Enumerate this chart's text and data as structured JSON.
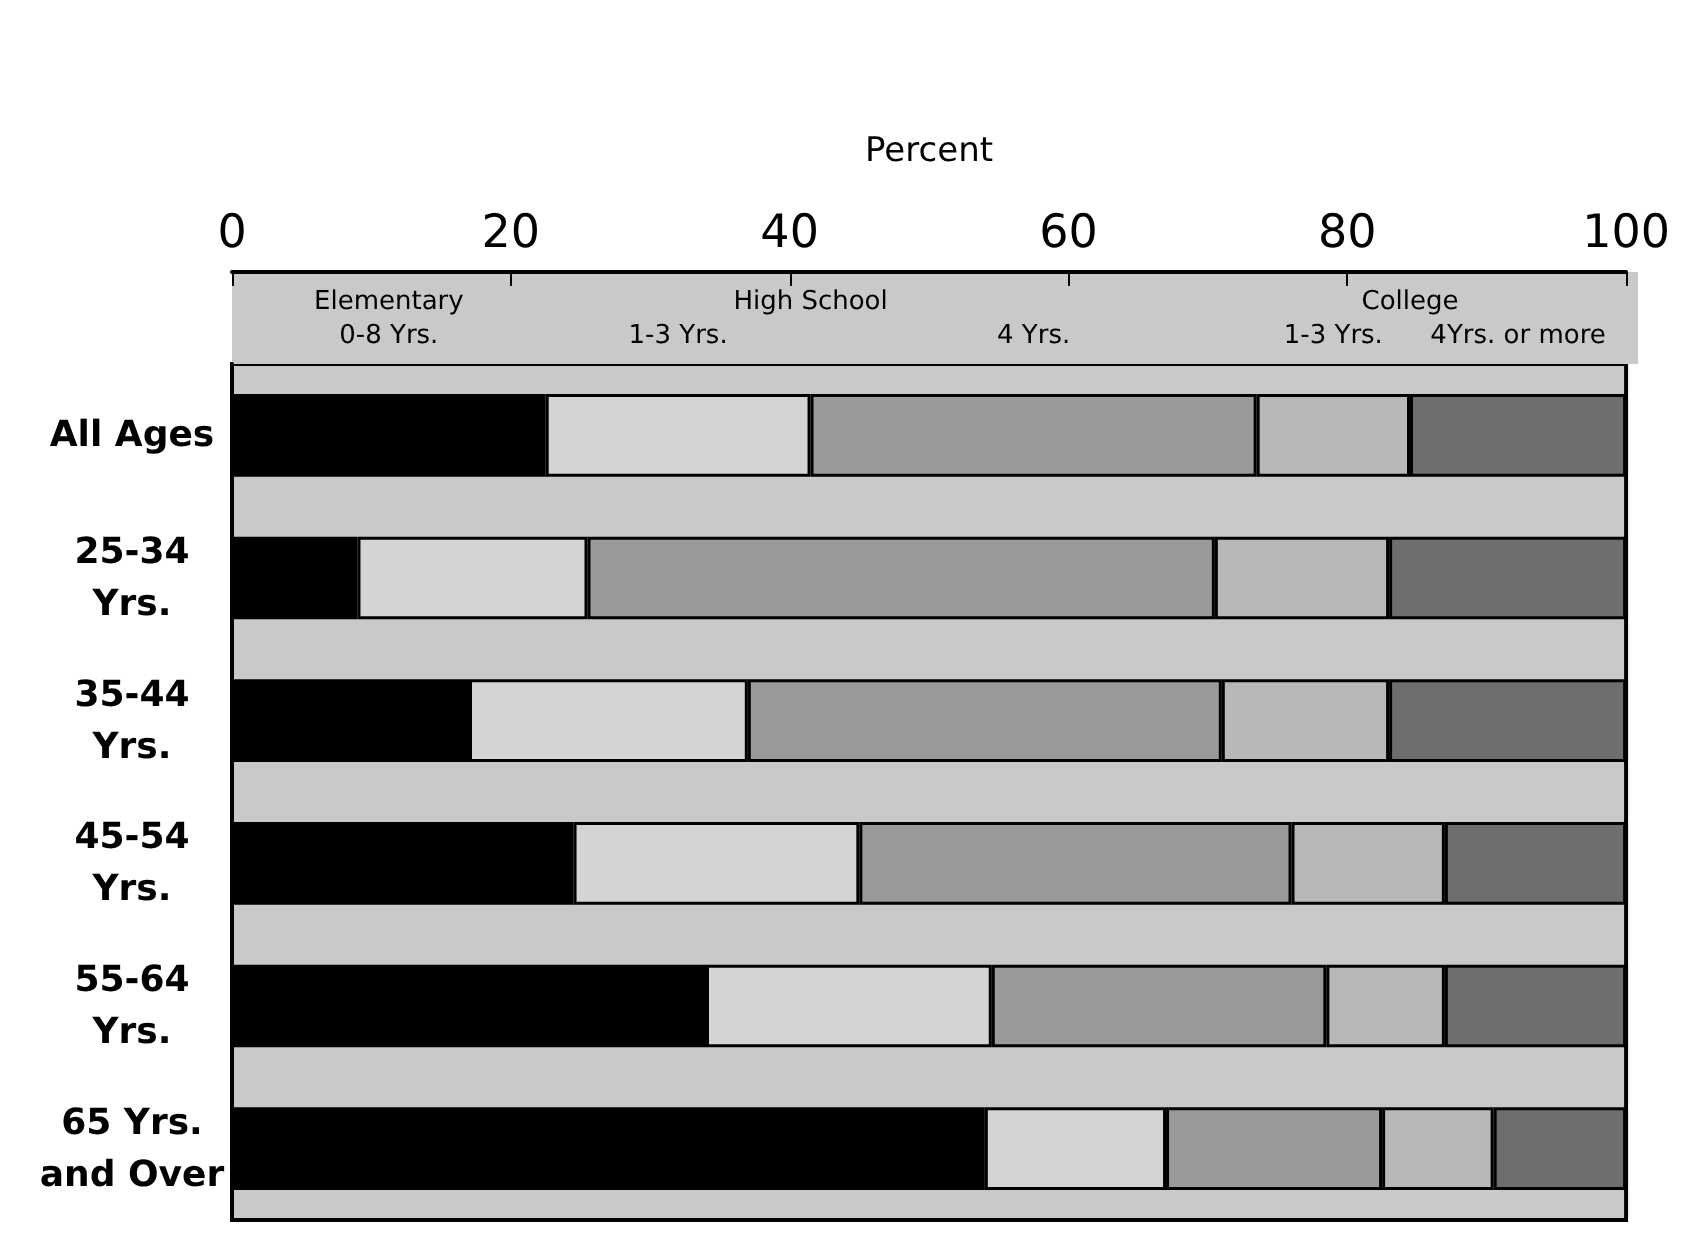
{
  "chart_data": {
    "type": "bar",
    "orientation": "horizontal",
    "stacked": true,
    "xlabel": "Percent",
    "categories": [
      "All Ages",
      "25-34\nYrs.",
      "35-44\nYrs.",
      "45-54\nYrs.",
      "55-64\nYrs.",
      "65 Yrs.\nand Over"
    ],
    "series": [
      {
        "name": "0-8 Yrs.",
        "color": "#000000",
        "values": [
          22.5,
          9,
          17,
          24.5,
          34,
          54
        ]
      },
      {
        "name": "1-3 Yrs.",
        "color": "#d4d4d4",
        "values": [
          19,
          16.5,
          20,
          20.5,
          20.5,
          13
        ]
      },
      {
        "name": "4 Yrs.",
        "color": "#9a9a9a",
        "values": [
          32,
          45,
          34,
          31,
          24,
          15.5
        ]
      },
      {
        "name": "1-3 Yrs.",
        "color": "#b8b8b8",
        "values": [
          11,
          12.5,
          12,
          11,
          8.5,
          8
        ]
      },
      {
        "name": "4Yrs. or more",
        "color": "#6e6e6e",
        "values": [
          15.5,
          17,
          17,
          13,
          13,
          9.5
        ]
      }
    ],
    "annotations": [
      "Elementary",
      "High School",
      "College"
    ],
    "xlim": [
      0,
      100
    ],
    "xticks": [
      0,
      20,
      40,
      60,
      80,
      100
    ],
    "grid": false,
    "legend": "top"
  }
}
